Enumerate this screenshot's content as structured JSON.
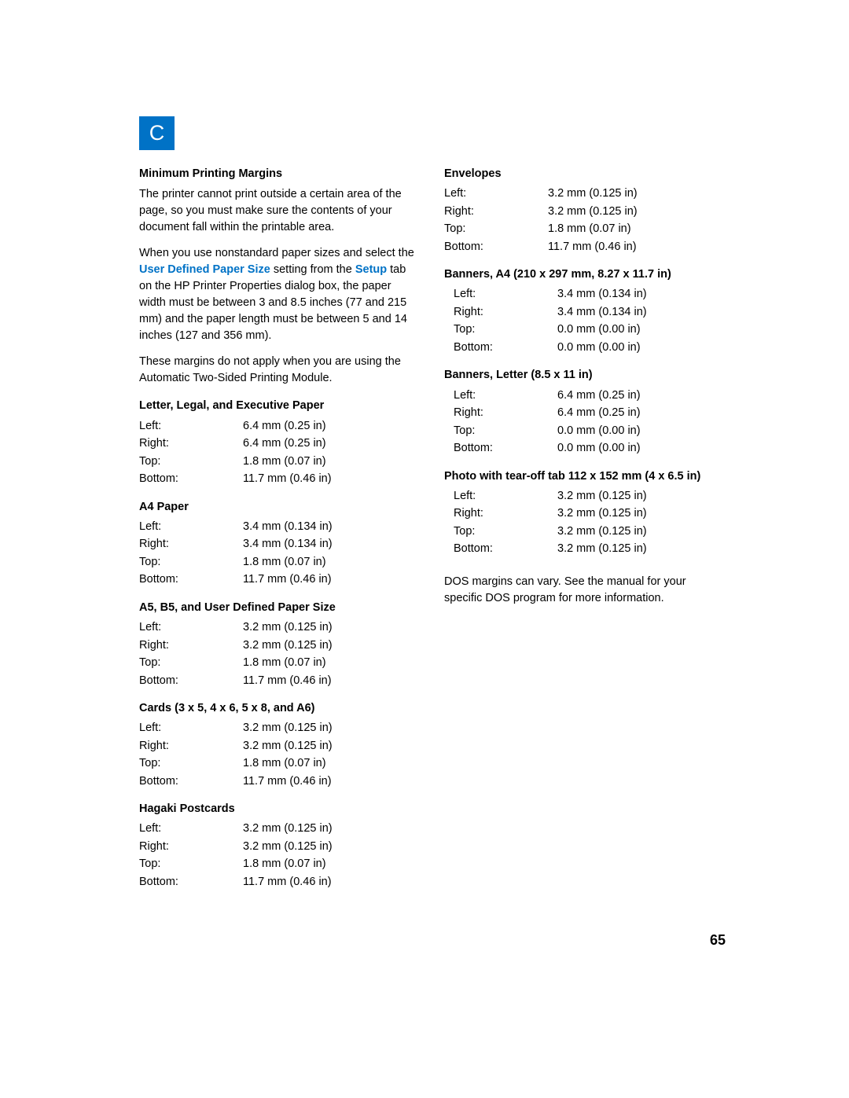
{
  "header_letter": "C",
  "page_number": "65",
  "left_col": {
    "title": "Minimum Printing Margins",
    "para1": "The printer cannot print outside a certain area of the page, so you must make sure the contents of your document fall within the printable area.",
    "para2_pre": "When you use nonstandard paper sizes and select the ",
    "para2_link1": "User Defined Paper Size",
    "para2_mid": " setting from the ",
    "para2_link2": "Setup",
    "para2_post": " tab on the HP Printer Properties dialog box, the paper width must be between 3 and 8.5 inches (77 and 215 mm) and the paper length must be between 5 and 14 inches (127 and 356 mm).",
    "para3": "These margins do not apply when you are using the Automatic Two-Sided Printing Module.",
    "blocks": [
      {
        "title": "Letter, Legal, and Executive Paper",
        "rows": [
          {
            "label": "Left:",
            "value": "6.4 mm (0.25 in)"
          },
          {
            "label": "Right:",
            "value": "6.4 mm (0.25 in)"
          },
          {
            "label": "Top:",
            "value": "1.8 mm (0.07 in)"
          },
          {
            "label": "Bottom:",
            "value": "11.7 mm (0.46 in)"
          }
        ]
      },
      {
        "title": "A4 Paper",
        "rows": [
          {
            "label": "Left:",
            "value": "3.4 mm (0.134 in)"
          },
          {
            "label": "Right:",
            "value": "3.4 mm (0.134 in)"
          },
          {
            "label": "Top:",
            "value": "1.8 mm (0.07 in)"
          },
          {
            "label": "Bottom:",
            "value": "11.7 mm (0.46 in)"
          }
        ]
      },
      {
        "title": "A5, B5, and User Defined Paper Size",
        "rows": [
          {
            "label": "Left:",
            "value": "3.2 mm (0.125 in)"
          },
          {
            "label": "Right:",
            "value": "3.2 mm (0.125 in)"
          },
          {
            "label": "Top:",
            "value": "1.8 mm (0.07 in)"
          },
          {
            "label": "Bottom:",
            "value": "11.7 mm (0.46 in)"
          }
        ]
      },
      {
        "title": "Cards (3 x 5, 4 x 6, 5 x 8, and A6)",
        "rows": [
          {
            "label": "Left:",
            "value": "3.2 mm (0.125 in)"
          },
          {
            "label": "Right:",
            "value": "3.2 mm (0.125 in)"
          },
          {
            "label": "Top:",
            "value": "1.8 mm (0.07 in)"
          },
          {
            "label": "Bottom:",
            "value": "11.7 mm (0.46 in)"
          }
        ]
      },
      {
        "title": "Hagaki Postcards",
        "rows": [
          {
            "label": "Left:",
            "value": "3.2 mm (0.125 in)"
          },
          {
            "label": "Right:",
            "value": "3.2 mm (0.125 in)"
          },
          {
            "label": "Top:",
            "value": "1.8 mm (0.07 in)"
          },
          {
            "label": "Bottom:",
            "value": "11.7 mm (0.46 in)"
          }
        ]
      }
    ]
  },
  "right_col": {
    "blocks": [
      {
        "title": "Envelopes",
        "indented": false,
        "rows": [
          {
            "label": "Left:",
            "value": "3.2 mm (0.125 in)"
          },
          {
            "label": "Right:",
            "value": "3.2 mm (0.125 in)"
          },
          {
            "label": "Top:",
            "value": "1.8 mm (0.07 in)"
          },
          {
            "label": "Bottom:",
            "value": "11.7 mm (0.46 in)"
          }
        ]
      },
      {
        "title": "Banners, A4 (210 x 297 mm, 8.27 x 11.7 in)",
        "indented": true,
        "rows": [
          {
            "label": "Left:",
            "value": "3.4 mm (0.134 in)"
          },
          {
            "label": "Right:",
            "value": "3.4 mm (0.134 in)"
          },
          {
            "label": "Top:",
            "value": "0.0 mm (0.00 in)"
          },
          {
            "label": "Bottom:",
            "value": "0.0 mm (0.00 in)"
          }
        ]
      },
      {
        "title": "Banners, Letter (8.5 x 11 in)",
        "indented": true,
        "rows": [
          {
            "label": "Left:",
            "value": "6.4 mm (0.25 in)"
          },
          {
            "label": "Right:",
            "value": "6.4 mm (0.25 in)"
          },
          {
            "label": "Top:",
            "value": "0.0 mm (0.00 in)"
          },
          {
            "label": "Bottom:",
            "value": "0.0 mm (0.00 in)"
          }
        ]
      },
      {
        "title": "Photo with tear-off tab 112 x 152 mm (4 x 6.5 in)",
        "indented": true,
        "rows": [
          {
            "label": "Left:",
            "value": "3.2 mm (0.125 in)"
          },
          {
            "label": "Right:",
            "value": "3.2 mm (0.125 in)"
          },
          {
            "label": "Top:",
            "value": "3.2 mm (0.125 in)"
          },
          {
            "label": "Bottom:",
            "value": "3.2 mm (0.125 in)"
          }
        ]
      }
    ],
    "footer": "DOS margins can vary. See the manual for your specific DOS program for more information."
  }
}
